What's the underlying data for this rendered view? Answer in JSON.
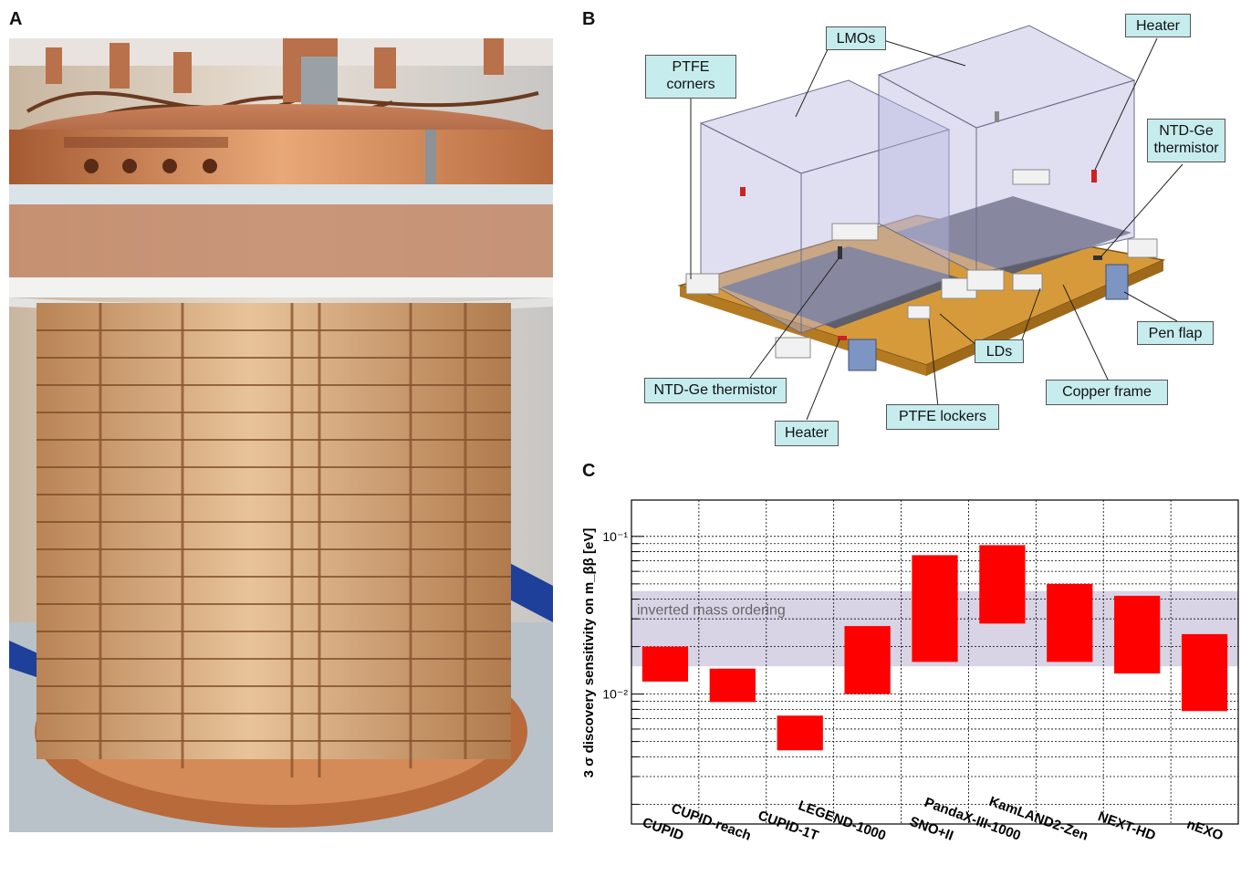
{
  "panels": {
    "a": "A",
    "b": "B",
    "c": "C"
  },
  "diagram": {
    "labels": {
      "ptfe_corners": "PTFE\ncorners",
      "lmos": "LMOs",
      "heater_top": "Heater",
      "ntd_ge_right": "NTD-Ge\nthermistor",
      "pen_flap": "Pen flap",
      "lds": "LDs",
      "copper_frame": "Copper frame",
      "ptfe_lockers": "PTFE lockers",
      "heater_bottom": "Heater",
      "ntd_ge_left": "NTD-Ge thermistor"
    }
  },
  "chart_data": {
    "type": "floating-bar",
    "ylabel": "3 σ discovery sensitivity on m_ββ [eV]",
    "yscale": "log",
    "ylim": [
      0.0015,
      0.17
    ],
    "yticks": [
      "10⁻²",
      "10⁻¹"
    ],
    "grid": true,
    "band": {
      "label": "inverted mass ordering",
      "low": 0.015,
      "high": 0.045,
      "color": "#d8d4e6"
    },
    "bar_color": "#ff0000",
    "categories": [
      "CUPID",
      "CUPID-reach",
      "CUPID-1T",
      "LEGEND-1000",
      "SNO+II",
      "PandaX-III-1000",
      "KamLAND2-Zen",
      "NEXT-HD",
      "nEXO"
    ],
    "low": [
      0.012,
      0.0089,
      0.0044,
      0.01,
      0.016,
      0.028,
      0.016,
      0.0135,
      0.0078
    ],
    "high": [
      0.02,
      0.0145,
      0.0073,
      0.027,
      0.076,
      0.088,
      0.05,
      0.042,
      0.024
    ]
  }
}
